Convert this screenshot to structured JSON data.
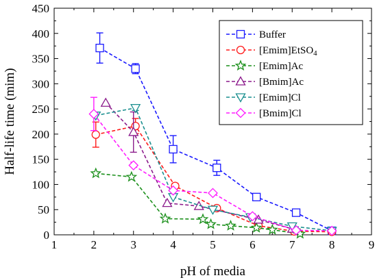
{
  "chart_data": {
    "type": "line",
    "xlabel": "pH of media",
    "ylabel": "Half-life time (mim)",
    "xlim": [
      1,
      9
    ],
    "ylim": [
      0,
      450
    ],
    "xticks": [
      1,
      2,
      3,
      4,
      5,
      6,
      7,
      8,
      9
    ],
    "yticks": [
      0,
      50,
      100,
      150,
      200,
      250,
      300,
      350,
      400,
      450
    ],
    "grid": false,
    "legend": "top-right",
    "series": [
      {
        "name": "Buffer",
        "legend_main": "Buffer",
        "legend_sub": "",
        "color": "#1a1aff",
        "marker": "square",
        "x": [
          2.15,
          3.05,
          4.0,
          5.1,
          6.1,
          7.1,
          8.0
        ],
        "y": [
          371,
          330,
          170,
          133,
          75,
          44,
          8
        ],
        "err": [
          30,
          10,
          27,
          15,
          6,
          5,
          0
        ]
      },
      {
        "name": "[Emim]EtSO4",
        "legend_main": "[Emim]EtSO",
        "legend_sub": "4",
        "color": "#ff1a1a",
        "marker": "circle",
        "x": [
          2.05,
          3.05,
          4.05,
          5.1,
          6.15,
          7.05,
          8.0
        ],
        "y": [
          199,
          216,
          97,
          53,
          18,
          7,
          6
        ],
        "err": [
          25,
          15,
          5,
          0,
          0,
          0,
          0
        ]
      },
      {
        "name": "[Emim]Ac",
        "legend_main": "[Emim]Ac",
        "legend_sub": "",
        "color": "#1a8f1a",
        "marker": "star",
        "x": [
          2.05,
          2.95,
          3.8,
          4.75,
          4.95,
          5.45,
          6.1,
          6.5,
          7.2
        ],
        "y": [
          122,
          115,
          32,
          31,
          21,
          18,
          14,
          10,
          2
        ],
        "err": [
          0,
          0,
          0,
          0,
          0,
          0,
          0,
          0,
          0
        ]
      },
      {
        "name": "[Bmim]Ac",
        "legend_main": "[Bmim]Ac",
        "legend_sub": "",
        "color": "#8b1a8b",
        "marker": "triangle",
        "x": [
          2.3,
          3.0,
          3.85,
          4.65,
          6.15,
          7.0
        ],
        "y": [
          262,
          204,
          63,
          57,
          30,
          12
        ],
        "err": [
          0,
          40,
          0,
          0,
          0,
          0
        ]
      },
      {
        "name": "[Emim]Cl",
        "legend_main": "[Emim]Cl",
        "legend_sub": "",
        "color": "#1a8f8f",
        "marker": "triangle-down",
        "x": [
          2.05,
          3.05,
          4.0,
          5.0,
          5.95,
          7.0,
          8.0
        ],
        "y": [
          237,
          252,
          75,
          50,
          35,
          17,
          8
        ],
        "err": [
          0,
          5,
          0,
          0,
          0,
          0,
          0
        ]
      },
      {
        "name": "[Bmim]Cl",
        "legend_main": "[Bmim]Cl",
        "legend_sub": "",
        "color": "#ff1aff",
        "marker": "diamond",
        "x": [
          2.0,
          3.0,
          4.0,
          5.0,
          6.0,
          7.1,
          8.0
        ],
        "y": [
          240,
          138,
          88,
          83,
          37,
          9,
          8
        ],
        "err": [
          33,
          0,
          0,
          0,
          0,
          0,
          0
        ]
      }
    ]
  }
}
